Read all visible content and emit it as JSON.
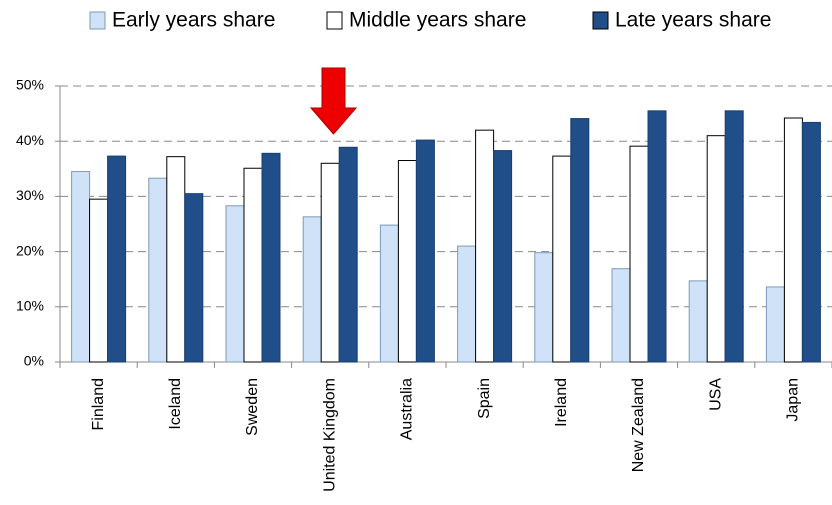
{
  "chart_data": {
    "type": "bar",
    "categories": [
      "Finland",
      "Iceland",
      "Sweden",
      "United Kingdom",
      "Australia",
      "Spain",
      "Ireland",
      "New Zealand",
      "USA",
      "Japan"
    ],
    "series": [
      {
        "name": "Early years share",
        "color": "#cfe2f7",
        "values": [
          34.5,
          33.3,
          28.3,
          26.3,
          24.8,
          21.0,
          19.8,
          16.9,
          14.7,
          13.6
        ]
      },
      {
        "name": "Middle years share",
        "color": "#ffffff",
        "values": [
          29.5,
          37.2,
          35.1,
          36.0,
          36.5,
          42.0,
          37.3,
          39.1,
          41.0,
          44.2
        ]
      },
      {
        "name": "Late years share",
        "color": "#1f4e89",
        "values": [
          37.3,
          30.5,
          37.8,
          38.9,
          40.2,
          38.3,
          44.1,
          45.5,
          45.5,
          43.4
        ]
      }
    ],
    "ylim": [
      0,
      50
    ],
    "yticks": [
      {
        "value": 0,
        "label": "0%"
      },
      {
        "value": 10,
        "label": "10%"
      },
      {
        "value": 20,
        "label": "20%"
      },
      {
        "value": 30,
        "label": "30%"
      },
      {
        "value": 40,
        "label": "40%"
      },
      {
        "value": 50,
        "label": "50%"
      }
    ],
    "grid": true,
    "legend": "top"
  }
}
